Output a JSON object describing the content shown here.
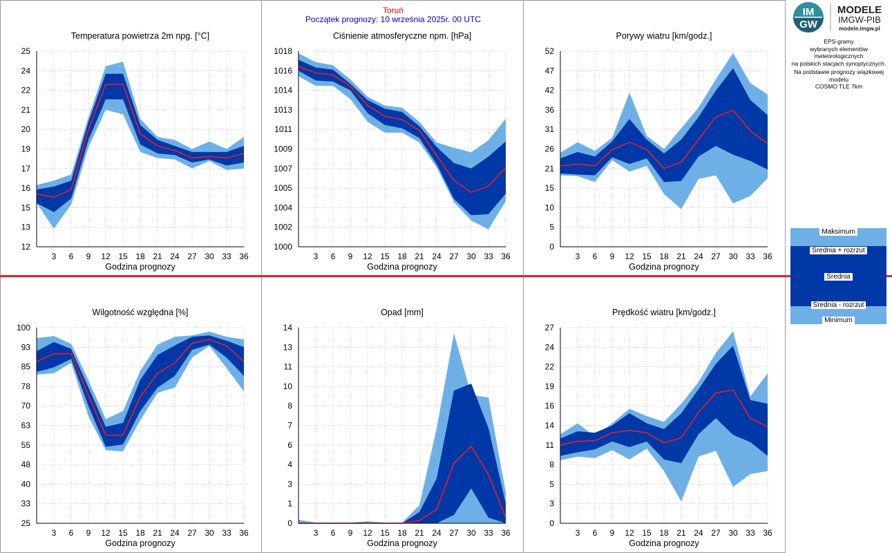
{
  "header": {
    "city": "Toruń",
    "forecast_start": "Początek prognozy: 10 września 2025r. 00 UTC"
  },
  "logo": {
    "badge_top": "IM",
    "badge_bottom": "GW",
    "line1": "MODELE",
    "line2": "IMGW-PIB",
    "line3": "modele.imgw.pl"
  },
  "info": {
    "description_lines": [
      "EPS-gramy",
      "wybranych elementów meteorologicznych",
      "na polskich stacjach  synoptycznych."
    ],
    "model_lines": [
      "Na podstawie prognozy wiązkowej modelu",
      "COSMO TLE 7km"
    ]
  },
  "legend": {
    "max_label": "Maksimum",
    "plus_label": "Średnia + rozrzut",
    "mean_label": "Średnia",
    "minus_label": "Średnia - rozrzut",
    "min_label": "Minimum"
  },
  "colors": {
    "outer_band": "#6eb0e6",
    "inner_band": "#0038a8",
    "mean_line": "#e81e2a",
    "grid": "#b4b4b4"
  },
  "chart_data": [
    {
      "id": "temp",
      "type": "area",
      "title": "Temperatura powietrza 2m npg. [°C]",
      "xlabel": "Godzina prognozy",
      "x": [
        0,
        3,
        6,
        9,
        12,
        15,
        18,
        21,
        24,
        27,
        30,
        33,
        36
      ],
      "xticks": [
        3,
        6,
        9,
        12,
        15,
        18,
        21,
        24,
        27,
        30,
        33,
        36
      ],
      "ylim": [
        12,
        25
      ],
      "yticks": [
        "12",
        "13",
        "15",
        "16",
        "17",
        "19",
        "20",
        "21",
        "22",
        "24",
        "25"
      ],
      "series": [
        {
          "name": "Maksimum",
          "values": [
            16.1,
            16.4,
            16.8,
            20.6,
            24.0,
            24.3,
            20.5,
            19.3,
            19.1,
            18.5,
            19.0,
            18.5,
            19.3
          ]
        },
        {
          "name": "Średnia + rozrzut",
          "values": [
            15.8,
            16.0,
            16.4,
            20.3,
            23.5,
            23.5,
            20.1,
            19.1,
            18.7,
            18.3,
            18.3,
            18.3,
            18.7
          ]
        },
        {
          "name": "Średnia",
          "values": [
            15.5,
            15.3,
            15.8,
            19.8,
            22.8,
            22.8,
            19.5,
            18.7,
            18.4,
            17.9,
            18.0,
            17.9,
            18.2
          ]
        },
        {
          "name": "Średnia - rozrzut",
          "values": [
            14.9,
            14.3,
            15.2,
            19.1,
            21.8,
            21.8,
            18.8,
            18.2,
            18.1,
            17.6,
            17.8,
            17.4,
            17.6
          ]
        },
        {
          "name": "Minimum",
          "values": [
            14.9,
            13.2,
            14.8,
            18.6,
            21.1,
            20.8,
            18.3,
            17.9,
            17.8,
            17.2,
            17.7,
            17.1,
            17.2
          ]
        }
      ]
    },
    {
      "id": "pressure",
      "type": "area",
      "title": "Ciśnienie atmosferyczne npm. [hPa]",
      "xlabel": "Godzina prognozy",
      "x": [
        0,
        3,
        6,
        9,
        12,
        15,
        18,
        21,
        24,
        27,
        30,
        33,
        36
      ],
      "xticks": [
        3,
        6,
        9,
        12,
        15,
        18,
        21,
        24,
        27,
        30,
        33,
        36
      ],
      "ylim": [
        1000,
        1018
      ],
      "yticks": [
        "1000",
        "1002",
        "1004",
        "1005",
        "1007",
        "1009",
        "1011",
        "1013",
        "1014",
        "1016",
        "1018"
      ],
      "series": [
        {
          "name": "Maksimum",
          "values": [
            1017.8,
            1017.0,
            1016.7,
            1015.4,
            1013.8,
            1013.0,
            1012.8,
            1011.5,
            1009.6,
            1009.1,
            1008.7,
            1009.8,
            1011.8
          ]
        },
        {
          "name": "Średnia + rozrzut",
          "values": [
            1017.2,
            1016.5,
            1016.3,
            1015.0,
            1013.5,
            1012.7,
            1012.4,
            1011.1,
            1009.2,
            1007.7,
            1007.2,
            1008.3,
            1009.7
          ]
        },
        {
          "name": "Średnia",
          "values": [
            1016.6,
            1016.0,
            1015.8,
            1014.8,
            1013.0,
            1012.0,
            1011.7,
            1010.7,
            1008.4,
            1006.1,
            1005.0,
            1005.6,
            1007.3
          ]
        },
        {
          "name": "Średnia - rozrzut",
          "values": [
            1016.2,
            1015.3,
            1015.2,
            1014.4,
            1012.3,
            1011.2,
            1010.9,
            1010.0,
            1007.6,
            1004.4,
            1002.9,
            1003.0,
            1004.9
          ]
        },
        {
          "name": "Minimum",
          "values": [
            1015.7,
            1014.8,
            1014.8,
            1013.6,
            1011.5,
            1010.5,
            1010.5,
            1009.6,
            1007.3,
            1004.1,
            1002.4,
            1001.6,
            1004.2
          ]
        }
      ]
    },
    {
      "id": "gusts",
      "type": "area",
      "title": "Porywy wiatru [km/godz.]",
      "xlabel": "Godzina prognozy",
      "x": [
        0,
        3,
        6,
        9,
        12,
        15,
        18,
        21,
        24,
        27,
        30,
        33,
        36
      ],
      "xticks": [
        3,
        6,
        9,
        12,
        15,
        18,
        21,
        24,
        27,
        30,
        33,
        36
      ],
      "ylim": [
        0,
        52
      ],
      "yticks": [
        "0",
        "5",
        "10",
        "15",
        "21",
        "26",
        "31",
        "36",
        "42",
        "47",
        "52"
      ],
      "series": [
        {
          "name": "Maksimum",
          "values": [
            25.0,
            27.8,
            25.5,
            29.0,
            41.0,
            29.5,
            26.0,
            31.5,
            37.0,
            44.5,
            51.5,
            43.5,
            40.5
          ]
        },
        {
          "name": "Średnia + rozrzut",
          "values": [
            23.5,
            25.2,
            24.0,
            28.0,
            34.0,
            28.5,
            24.8,
            28.5,
            34.5,
            41.5,
            47.5,
            39.0,
            35.0
          ]
        },
        {
          "name": "Średnia",
          "values": [
            21.5,
            22.0,
            21.5,
            25.8,
            27.8,
            25.8,
            20.8,
            22.5,
            28.5,
            34.5,
            36.3,
            30.8,
            27.5
          ]
        },
        {
          "name": "Średnia - rozrzut",
          "values": [
            19.5,
            19.2,
            19.0,
            23.8,
            22.0,
            23.5,
            17.2,
            17.5,
            24.0,
            26.8,
            24.5,
            22.8,
            20.5
          ]
        },
        {
          "name": "Minimum",
          "values": [
            19.0,
            18.8,
            17.2,
            23.0,
            20.0,
            21.5,
            14.0,
            10.0,
            18.0,
            19.0,
            11.5,
            13.5,
            18.2
          ]
        }
      ]
    },
    {
      "id": "humidity",
      "type": "area",
      "title": "Wilgotność względna [%]",
      "xlabel": "Godzina prognozy",
      "x": [
        0,
        3,
        6,
        9,
        12,
        15,
        18,
        21,
        24,
        27,
        30,
        33,
        36
      ],
      "xticks": [
        3,
        6,
        9,
        12,
        15,
        18,
        21,
        24,
        27,
        30,
        33,
        36
      ],
      "ylim": [
        25,
        100
      ],
      "yticks": [
        "25",
        "33",
        "40",
        "48",
        "55",
        "63",
        "70",
        "78",
        "85",
        "93",
        "100"
      ],
      "series": [
        {
          "name": "Maksimum",
          "values": [
            96.0,
            96.8,
            93.8,
            79.8,
            65.0,
            68.0,
            83.5,
            93.5,
            96.5,
            97.0,
            98.5,
            96.5,
            95.5
          ]
        },
        {
          "name": "Średnia + rozrzut",
          "values": [
            91.0,
            94.5,
            91.8,
            77.0,
            62.0,
            63.5,
            80.0,
            89.5,
            93.2,
            96.5,
            97.0,
            95.0,
            92.5
          ]
        },
        {
          "name": "Średnia",
          "values": [
            87.0,
            90.0,
            90.0,
            74.0,
            58.8,
            58.8,
            73.5,
            82.5,
            86.5,
            94.0,
            95.5,
            93.0,
            87.0
          ]
        },
        {
          "name": "Średnia - rozrzut",
          "values": [
            83.0,
            84.8,
            88.0,
            70.0,
            54.3,
            55.2,
            68.0,
            77.0,
            81.5,
            91.5,
            93.5,
            88.5,
            81.5
          ]
        },
        {
          "name": "Minimum",
          "values": [
            82.0,
            82.5,
            86.5,
            66.0,
            53.0,
            52.5,
            64.5,
            75.0,
            77.0,
            88.5,
            93.0,
            84.5,
            75.5
          ]
        }
      ]
    },
    {
      "id": "precip",
      "type": "area",
      "title": "Opad [mm]",
      "xlabel": "Godzina prognozy",
      "x": [
        0,
        3,
        6,
        9,
        12,
        15,
        18,
        21,
        24,
        27,
        30,
        33,
        36
      ],
      "xticks": [
        3,
        6,
        9,
        12,
        15,
        18,
        21,
        24,
        27,
        30,
        33,
        36
      ],
      "ylim": [
        0,
        14
      ],
      "yticks": [
        "0",
        "1",
        "3",
        "4",
        "6",
        "7",
        "8",
        "10",
        "11",
        "13",
        "14"
      ],
      "series": [
        {
          "name": "Maksimum",
          "values": [
            0.25,
            0.05,
            0.05,
            0.05,
            0.15,
            0.05,
            0.05,
            1.3,
            6.8,
            13.6,
            9.2,
            9.0,
            2.2
          ]
        },
        {
          "name": "Średnia + rozrzut",
          "values": [
            0.0,
            0.0,
            0.0,
            0.0,
            0.02,
            0.0,
            0.0,
            0.8,
            3.2,
            9.5,
            10.0,
            6.8,
            1.4
          ]
        },
        {
          "name": "Średnia",
          "values": [
            0.0,
            0.0,
            0.0,
            0.0,
            0.0,
            0.0,
            0.0,
            0.2,
            1.0,
            4.3,
            5.5,
            3.5,
            0.4
          ]
        },
        {
          "name": "Średnia - rozrzut",
          "values": [
            0.0,
            0.0,
            0.0,
            0.0,
            0.0,
            0.0,
            0.0,
            0.0,
            0.0,
            0.6,
            2.5,
            0.4,
            0.0
          ]
        },
        {
          "name": "Minimum",
          "values": [
            0.0,
            0.0,
            0.0,
            0.0,
            0.0,
            0.0,
            0.0,
            0.0,
            0.0,
            0.0,
            0.0,
            0.0,
            0.0
          ]
        }
      ]
    },
    {
      "id": "wind",
      "type": "area",
      "title": "Prędkość wiatru [km/godz.]",
      "xlabel": "Godzina prognozy",
      "x": [
        0,
        3,
        6,
        9,
        12,
        15,
        18,
        21,
        24,
        27,
        30,
        33,
        36
      ],
      "xticks": [
        3,
        6,
        9,
        12,
        15,
        18,
        21,
        24,
        27,
        30,
        33,
        36
      ],
      "ylim": [
        0,
        27
      ],
      "yticks": [
        "0",
        "3",
        "5",
        "8",
        "11",
        "14",
        "16",
        "19",
        "22",
        "24",
        "27"
      ],
      "series": [
        {
          "name": "Maksimum",
          "values": [
            12.3,
            13.8,
            12.0,
            13.8,
            15.8,
            14.8,
            14.0,
            16.5,
            19.5,
            23.5,
            26.5,
            17.5,
            20.7
          ]
        },
        {
          "name": "Średnia + rozrzut",
          "values": [
            11.7,
            12.7,
            12.5,
            13.5,
            15.2,
            13.8,
            13.0,
            15.2,
            18.5,
            22.0,
            24.5,
            17.0,
            16.5
          ]
        },
        {
          "name": "Średnia",
          "values": [
            10.8,
            11.3,
            11.4,
            12.5,
            12.8,
            12.5,
            11.1,
            11.8,
            15.3,
            18.0,
            18.4,
            14.5,
            13.3
          ]
        },
        {
          "name": "Średnia - rozrzut",
          "values": [
            9.3,
            9.8,
            10.2,
            11.3,
            10.5,
            11.3,
            8.8,
            8.3,
            12.3,
            14.5,
            12.2,
            11.2,
            9.3
          ]
        },
        {
          "name": "Minimum",
          "values": [
            8.7,
            9.2,
            9.0,
            10.1,
            8.8,
            10.3,
            7.2,
            3.0,
            9.2,
            10.0,
            5.0,
            6.8,
            7.2
          ]
        }
      ]
    }
  ]
}
